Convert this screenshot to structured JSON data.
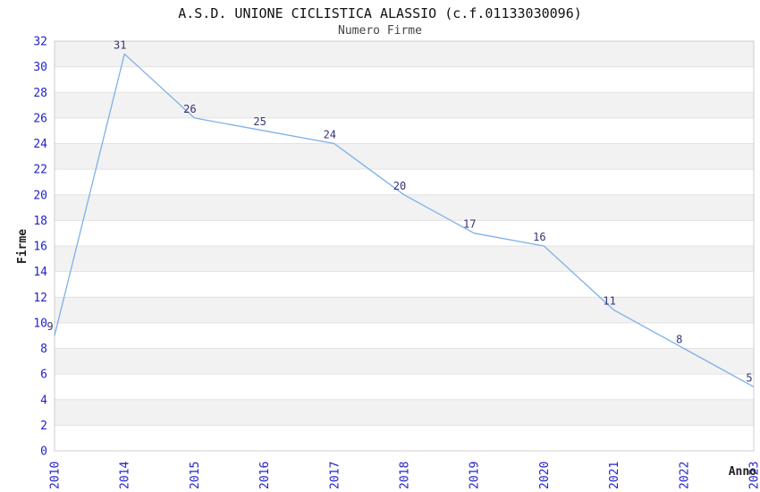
{
  "title": "A.S.D. UNIONE CICLISTICA ALASSIO (c.f.01133030096)",
  "subtitle": "Numero Firme",
  "chart_data": {
    "type": "line",
    "title": "A.S.D. UNIONE CICLISTICA ALASSIO (c.f.01133030096)",
    "subtitle": "Numero Firme",
    "categories": [
      "2010",
      "2014",
      "2015",
      "2016",
      "2017",
      "2018",
      "2019",
      "2020",
      "2021",
      "2022",
      "2023"
    ],
    "values": [
      9,
      31,
      26,
      25,
      24,
      20,
      17,
      16,
      11,
      8,
      5
    ],
    "xlabel": "Anno",
    "ylabel": "Firme",
    "ylim": [
      0,
      32
    ],
    "ytick_step": 2,
    "yticks": [
      0,
      2,
      4,
      6,
      8,
      10,
      12,
      14,
      16,
      18,
      20,
      22,
      24,
      26,
      28,
      30,
      32
    ],
    "grid": true,
    "legend_position": "none",
    "colors": {
      "line": "#7db1e8",
      "tick_label": "#2222cc",
      "data_label": "#333377",
      "band_alt": "#f2f2f2",
      "band_main": "#ffffff",
      "gridline": "#e2e2e2",
      "plot_border": "#cccccc",
      "axis_title": "#222222",
      "title": "#111111",
      "subtitle": "#444444"
    }
  }
}
